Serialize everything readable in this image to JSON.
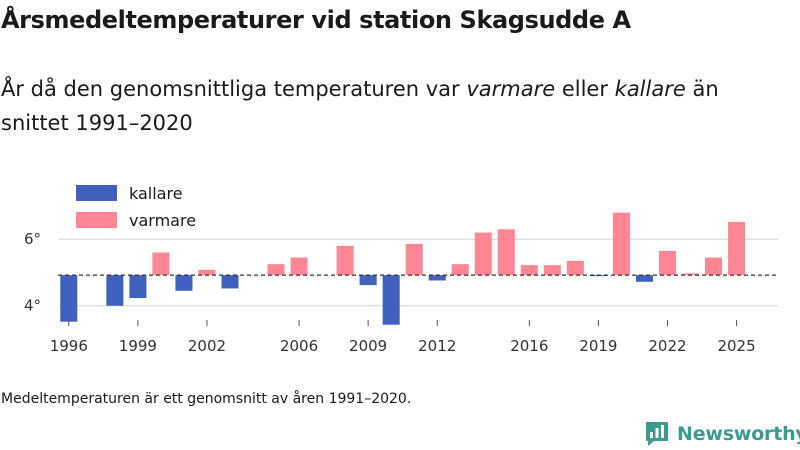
{
  "header": {
    "title": "Årsmedeltemperaturer vid station Skagsudde A",
    "subtitle_part1": "År då den genomsnittliga temperaturen var ",
    "subtitle_warm": "varmare",
    "subtitle_part2": " eller ",
    "subtitle_cold": "kallare",
    "subtitle_part3": " än snittet 1991–2020"
  },
  "footer": {
    "note": "Medeltemperaturen är ett genomsnitt av åren 1991–2020.",
    "brand": "Newsworthy"
  },
  "colors": {
    "warm": "#ff8795",
    "cold": "#3f60bd",
    "brand": "#3d9a93"
  },
  "chart_data": {
    "type": "bar",
    "baseline": 4.92,
    "baseline_style": "dashed",
    "ylim": [
      3.3,
      7.3
    ],
    "yticks": [
      4,
      6
    ],
    "ytick_labels": [
      "4°",
      "6°"
    ],
    "xlim": [
      1995.4,
      2026.8
    ],
    "xticks": [
      1996,
      1999,
      2002,
      2006,
      2009,
      2012,
      2016,
      2019,
      2022,
      2025
    ],
    "legend": [
      {
        "name": "kallare",
        "color": "#3f60bd"
      },
      {
        "name": "varmare",
        "color": "#ff8795"
      }
    ],
    "legend_position": "top-left",
    "categories": [
      1996,
      1998,
      1999,
      2000,
      2001,
      2002,
      2003,
      2005,
      2006,
      2008,
      2009,
      2010,
      2011,
      2012,
      2013,
      2014,
      2015,
      2016,
      2017,
      2018,
      2019,
      2020,
      2021,
      2022,
      2023,
      2024,
      2025
    ],
    "values": [
      3.52,
      4.0,
      4.23,
      5.6,
      4.45,
      5.08,
      4.52,
      5.25,
      5.45,
      5.8,
      4.62,
      3.43,
      5.86,
      4.76,
      5.25,
      6.2,
      6.3,
      5.22,
      5.22,
      5.35,
      4.9,
      6.8,
      4.72,
      5.65,
      4.97,
      5.45,
      6.52
    ]
  }
}
